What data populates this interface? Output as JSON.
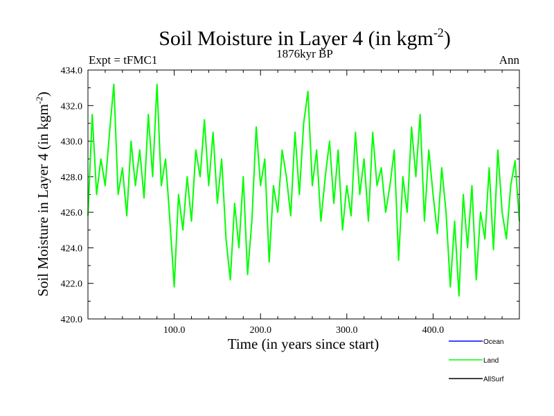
{
  "chart_data": {
    "type": "line",
    "title": "Soil Moisture in Layer 4 (in kgm",
    "title_sup": "-2",
    "title_close": ")",
    "subtitle": "1876kyr BP",
    "left_label": "Expt = tFMC1",
    "right_label": "Ann",
    "xlabel": "Time (in years since start)",
    "ylabel": "Soil Moisture in Layer 4 (in kgm",
    "ylabel_sup": "-2",
    "ylabel_close": ")",
    "xlim": [
      0,
      500
    ],
    "ylim": [
      420,
      434
    ],
    "x_ticks": [
      100,
      200,
      300,
      400
    ],
    "x_tick_labels": [
      "100.0",
      "200.0",
      "300.0",
      "400.0"
    ],
    "y_ticks": [
      420,
      422,
      424,
      426,
      428,
      430,
      432,
      434
    ],
    "y_tick_labels": [
      "420.0",
      "422.0",
      "424.0",
      "426.0",
      "428.0",
      "430.0",
      "432.0",
      "434.0"
    ],
    "legend": [
      {
        "name": "Ocean",
        "color": "#0000ff"
      },
      {
        "name": "Land",
        "color": "#00ff00"
      },
      {
        "name": "AllSurf",
        "color": "#000000"
      }
    ],
    "series": [
      {
        "name": "Land",
        "color": "#00ff00",
        "x": [
          0,
          5,
          10,
          15,
          20,
          25,
          30,
          35,
          40,
          45,
          50,
          55,
          60,
          65,
          70,
          75,
          80,
          85,
          90,
          95,
          100,
          105,
          110,
          115,
          120,
          125,
          130,
          135,
          140,
          145,
          150,
          155,
          160,
          165,
          170,
          175,
          180,
          185,
          190,
          195,
          200,
          205,
          210,
          215,
          220,
          225,
          230,
          235,
          240,
          245,
          250,
          255,
          260,
          265,
          270,
          275,
          280,
          285,
          290,
          295,
          300,
          305,
          310,
          315,
          320,
          325,
          330,
          335,
          340,
          345,
          350,
          355,
          360,
          365,
          370,
          375,
          380,
          385,
          390,
          395,
          400,
          405,
          410,
          415,
          420,
          425,
          430,
          435,
          440,
          445,
          450,
          455,
          460,
          465,
          470,
          475,
          480,
          485,
          490,
          495,
          500
        ],
        "values": [
          425.8,
          431.5,
          427.0,
          429.0,
          427.5,
          430.5,
          433.2,
          427.0,
          428.5,
          425.8,
          430.0,
          427.5,
          429.5,
          426.8,
          431.5,
          428.0,
          433.2,
          427.5,
          429.0,
          425.5,
          421.8,
          427.0,
          425.0,
          428.0,
          425.5,
          429.5,
          428.0,
          431.2,
          427.5,
          430.5,
          426.5,
          429.0,
          424.5,
          422.2,
          426.5,
          424.0,
          428.0,
          422.5,
          425.5,
          430.8,
          427.5,
          429.0,
          423.2,
          427.5,
          426.0,
          429.5,
          428.0,
          425.8,
          430.5,
          427.0,
          431.0,
          432.8,
          427.5,
          429.5,
          425.5,
          428.0,
          430.0,
          426.5,
          429.5,
          425.0,
          427.5,
          425.8,
          430.5,
          427.0,
          429.0,
          425.5,
          430.5,
          427.5,
          428.5,
          426.0,
          427.5,
          429.5,
          423.3,
          428.0,
          426.0,
          430.8,
          428.0,
          431.5,
          425.5,
          429.5,
          427.0,
          424.8,
          428.5,
          426.0,
          421.8,
          425.5,
          421.3,
          427.0,
          424.0,
          427.5,
          422.2,
          426.0,
          424.5,
          428.5,
          423.9,
          429.5,
          426.0,
          424.5,
          427.5,
          428.9,
          425.5
        ]
      }
    ]
  }
}
